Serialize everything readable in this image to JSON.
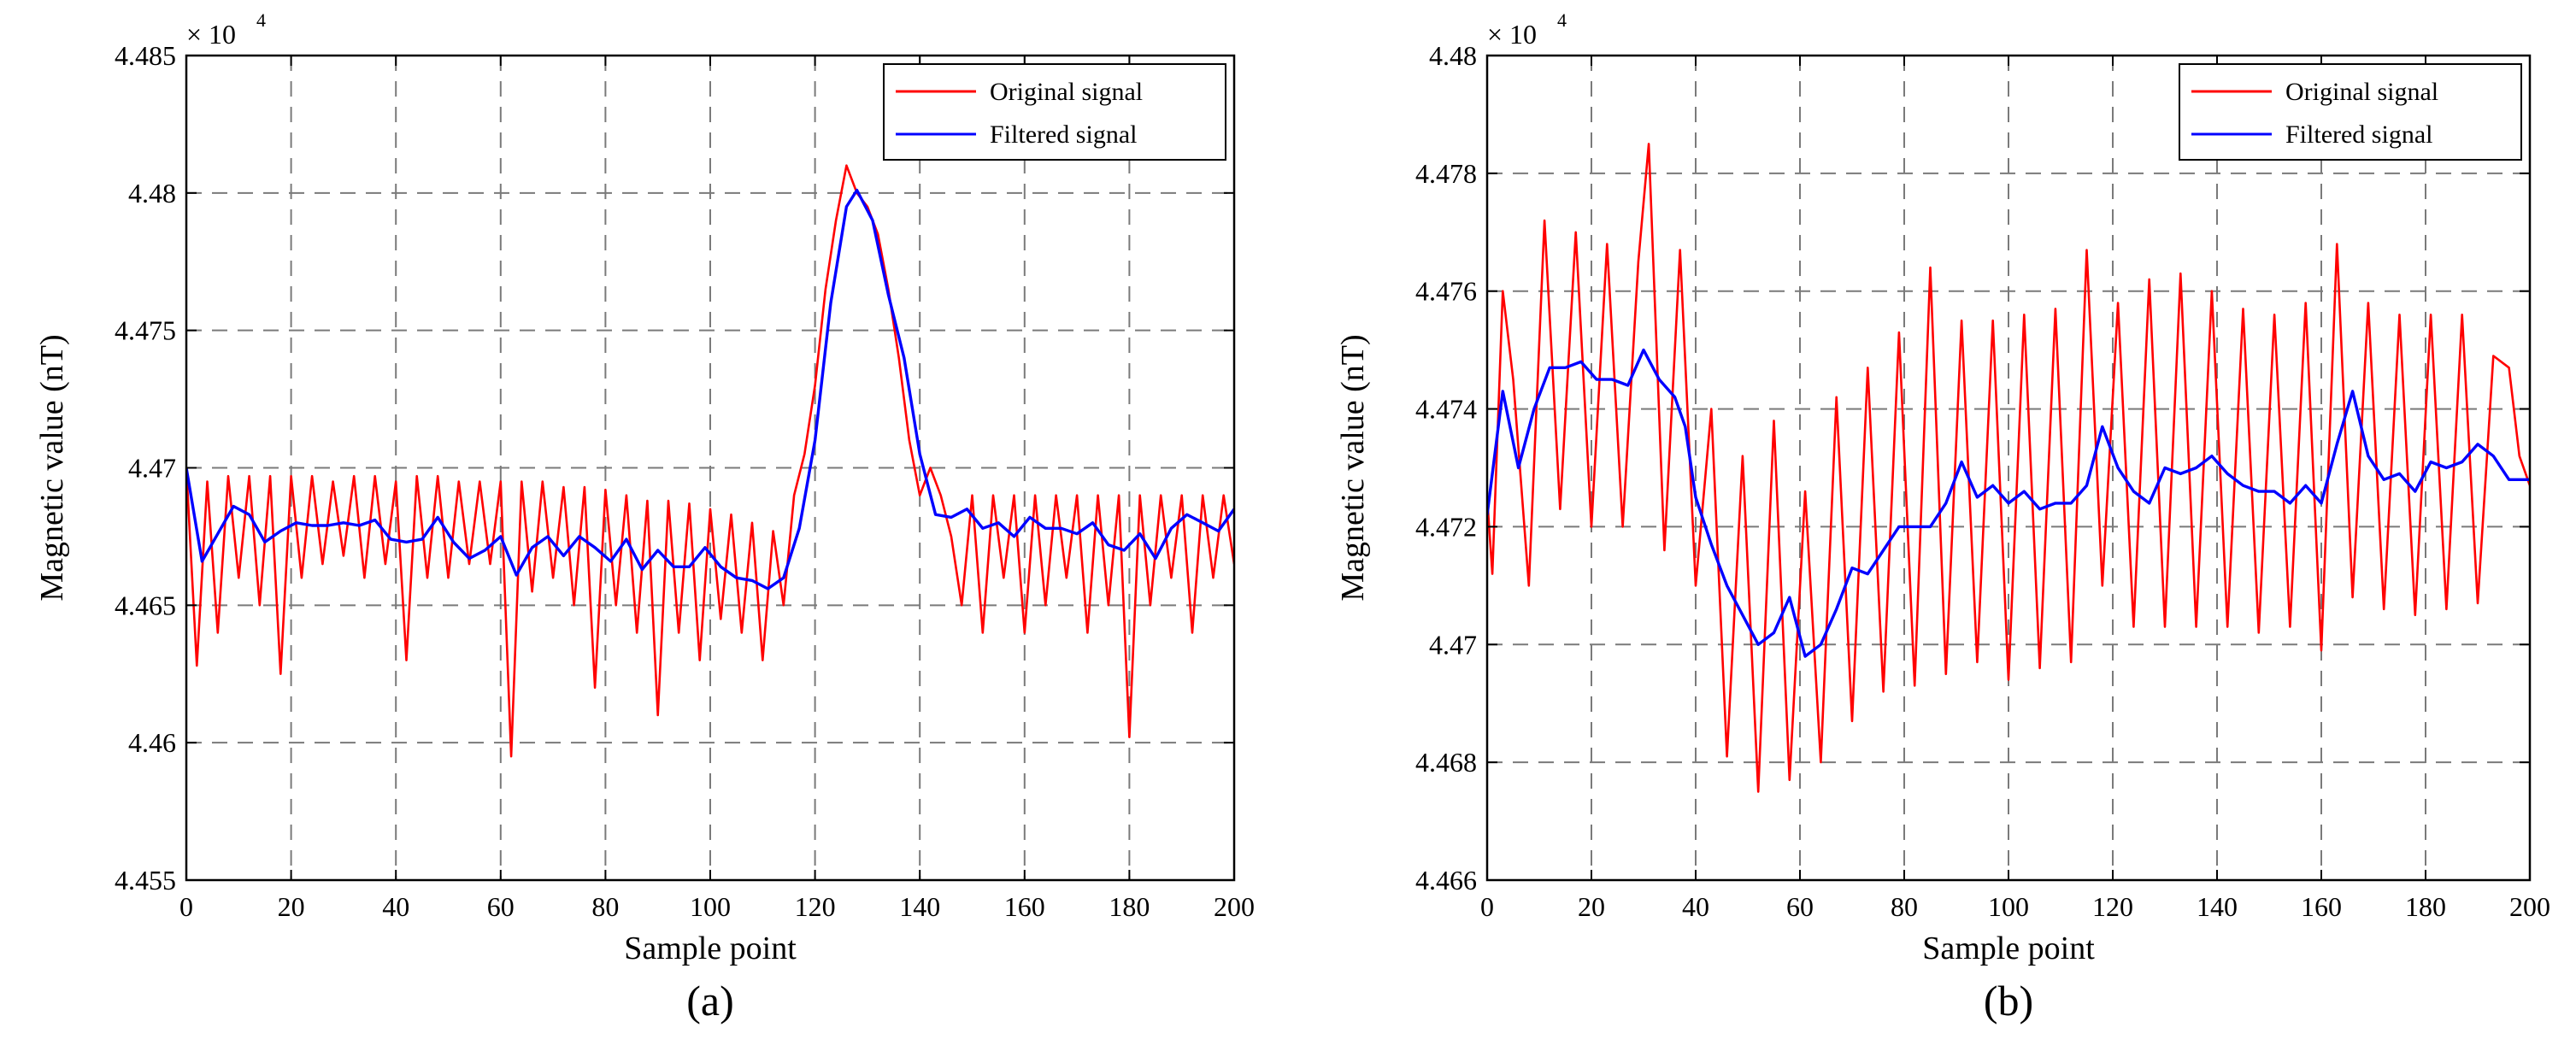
{
  "figure": {
    "panels": [
      "(a)",
      "(b)"
    ]
  },
  "colors": {
    "original": "#ff0000",
    "filtered": "#0000ff",
    "grid": "#7a7a7a",
    "axis": "#000000"
  },
  "chart_data": [
    {
      "type": "line",
      "panel_label": "(a)",
      "xlabel": "Sample point",
      "ylabel": "Magnetic value (nT)",
      "scale_factor_text": "× 10",
      "scale_factor_exp": "4",
      "xlim": [
        0,
        200
      ],
      "ylim": [
        4.455,
        4.485
      ],
      "xticks": [
        0,
        20,
        40,
        60,
        80,
        100,
        120,
        140,
        160,
        180,
        200
      ],
      "yticks": [
        4.455,
        4.46,
        4.465,
        4.47,
        4.475,
        4.48,
        4.485
      ],
      "xtick_labels": [
        "0",
        "20",
        "40",
        "60",
        "80",
        "100",
        "120",
        "140",
        "160",
        "180",
        "200"
      ],
      "ytick_labels": [
        "4.455",
        "4.46",
        "4.465",
        "4.47",
        "4.475",
        "4.48",
        "4.485"
      ],
      "grid": true,
      "legend_position": "top-right",
      "series": [
        {
          "name": "Original signal",
          "color": "#ff0000",
          "x": [
            0,
            2,
            4,
            6,
            8,
            10,
            12,
            14,
            16,
            18,
            20,
            22,
            24,
            26,
            28,
            30,
            32,
            34,
            36,
            38,
            40,
            42,
            44,
            46,
            48,
            50,
            52,
            54,
            56,
            58,
            60,
            62,
            64,
            66,
            68,
            70,
            72,
            74,
            76,
            78,
            80,
            82,
            84,
            86,
            88,
            90,
            92,
            94,
            96,
            98,
            100,
            102,
            104,
            106,
            108,
            110,
            112,
            114,
            116,
            118,
            120,
            122,
            124,
            126,
            128,
            130,
            132,
            134,
            136,
            138,
            140,
            142,
            144,
            146,
            148,
            150,
            152,
            154,
            156,
            158,
            160,
            162,
            164,
            166,
            168,
            170,
            172,
            174,
            176,
            178,
            180,
            182,
            184,
            186,
            188,
            190,
            192,
            194,
            196,
            198,
            200
          ],
          "y": [
            4.47,
            4.4628,
            4.4695,
            4.464,
            4.4697,
            4.466,
            4.4697,
            4.465,
            4.4697,
            4.4625,
            4.4697,
            4.466,
            4.4697,
            4.4665,
            4.4695,
            4.4668,
            4.4697,
            4.466,
            4.4697,
            4.4665,
            4.4695,
            4.463,
            4.4697,
            4.466,
            4.4697,
            4.466,
            4.4695,
            4.4665,
            4.4695,
            4.4665,
            4.4695,
            4.4595,
            4.4695,
            4.4655,
            4.4695,
            4.466,
            4.4693,
            4.465,
            4.4693,
            4.462,
            4.4692,
            4.465,
            4.469,
            4.464,
            4.4688,
            4.461,
            4.4688,
            4.464,
            4.4687,
            4.463,
            4.4685,
            4.4645,
            4.4683,
            4.464,
            4.468,
            4.463,
            4.4677,
            4.465,
            4.469,
            4.4705,
            4.473,
            4.4765,
            4.479,
            4.481,
            4.48,
            4.4795,
            4.4785,
            4.4765,
            4.474,
            4.471,
            4.469,
            4.47,
            4.469,
            4.4675,
            4.465,
            4.469,
            4.464,
            4.469,
            4.466,
            4.469,
            4.464,
            4.469,
            4.465,
            4.469,
            4.466,
            4.469,
            4.464,
            4.469,
            4.465,
            4.469,
            4.4602,
            4.469,
            4.465,
            4.469,
            4.466,
            4.469,
            4.464,
            4.469,
            4.466,
            4.469,
            4.4665
          ]
        },
        {
          "name": "Filtered signal",
          "color": "#0000ff",
          "x": [
            0,
            3,
            6,
            9,
            12,
            15,
            18,
            21,
            24,
            27,
            30,
            33,
            36,
            39,
            42,
            45,
            48,
            51,
            54,
            57,
            60,
            63,
            66,
            69,
            72,
            75,
            78,
            81,
            84,
            87,
            90,
            93,
            96,
            99,
            102,
            105,
            108,
            111,
            114,
            117,
            120,
            123,
            126,
            128,
            131,
            134,
            137,
            140,
            143,
            146,
            149,
            152,
            155,
            158,
            161,
            164,
            167,
            170,
            173,
            176,
            179,
            182,
            185,
            188,
            191,
            194,
            197,
            200
          ],
          "y": [
            4.47,
            4.4666,
            4.4676,
            4.4686,
            4.4683,
            4.4673,
            4.4677,
            4.468,
            4.4679,
            4.4679,
            4.468,
            4.4679,
            4.4681,
            4.4674,
            4.4673,
            4.4674,
            4.4682,
            4.4673,
            4.4667,
            4.467,
            4.4675,
            4.4661,
            4.4671,
            4.4675,
            4.4668,
            4.4675,
            4.4671,
            4.4666,
            4.4674,
            4.4663,
            4.467,
            4.4664,
            4.4664,
            4.4671,
            4.4664,
            4.466,
            4.4659,
            4.4656,
            4.466,
            4.4678,
            4.471,
            4.476,
            4.4795,
            4.4801,
            4.479,
            4.4763,
            4.474,
            4.4705,
            4.4683,
            4.4682,
            4.4685,
            4.4678,
            4.468,
            4.4675,
            4.4682,
            4.4678,
            4.4678,
            4.4676,
            4.468,
            4.4672,
            4.467,
            4.4676,
            4.4667,
            4.4678,
            4.4683,
            4.468,
            4.4677,
            4.4685
          ]
        }
      ]
    },
    {
      "type": "line",
      "panel_label": "(b)",
      "xlabel": "Sample point",
      "ylabel": "Magnetic value (nT)",
      "scale_factor_text": "× 10",
      "scale_factor_exp": "4",
      "xlim": [
        0,
        200
      ],
      "ylim": [
        4.466,
        4.48
      ],
      "xticks": [
        0,
        20,
        40,
        60,
        80,
        100,
        120,
        140,
        160,
        180,
        200
      ],
      "yticks": [
        4.466,
        4.468,
        4.47,
        4.472,
        4.474,
        4.476,
        4.478,
        4.48
      ],
      "xtick_labels": [
        "0",
        "20",
        "40",
        "60",
        "80",
        "100",
        "120",
        "140",
        "160",
        "180",
        "200"
      ],
      "ytick_labels": [
        "4.466",
        "4.468",
        "4.47",
        "4.472",
        "4.474",
        "4.476",
        "4.478",
        "4.48"
      ],
      "grid": true,
      "legend_position": "top-right",
      "series": [
        {
          "name": "Original signal",
          "color": "#ff0000",
          "x": [
            0,
            1,
            3,
            5,
            8,
            11,
            14,
            17,
            20,
            23,
            26,
            29,
            31,
            34,
            37,
            40,
            43,
            46,
            49,
            52,
            55,
            58,
            61,
            64,
            67,
            70,
            73,
            76,
            79,
            82,
            85,
            88,
            91,
            94,
            97,
            100,
            103,
            106,
            109,
            112,
            115,
            118,
            121,
            124,
            127,
            130,
            133,
            136,
            139,
            142,
            145,
            148,
            151,
            154,
            157,
            160,
            163,
            166,
            169,
            172,
            175,
            178,
            181,
            184,
            187,
            190,
            193,
            196,
            198,
            200
          ],
          "y": [
            4.4725,
            4.4712,
            4.476,
            4.4745,
            4.471,
            4.4772,
            4.4723,
            4.477,
            4.472,
            4.4768,
            4.472,
            4.4765,
            4.4785,
            4.4716,
            4.4767,
            4.471,
            4.474,
            4.4681,
            4.4732,
            4.4675,
            4.4738,
            4.4677,
            4.4726,
            4.468,
            4.4742,
            4.4687,
            4.4747,
            4.4692,
            4.4753,
            4.4693,
            4.4764,
            4.4695,
            4.4755,
            4.4697,
            4.4755,
            4.4694,
            4.4756,
            4.4696,
            4.4757,
            4.4697,
            4.4767,
            4.471,
            4.4758,
            4.4703,
            4.4762,
            4.4703,
            4.4763,
            4.4703,
            4.476,
            4.4703,
            4.4757,
            4.4702,
            4.4756,
            4.4703,
            4.4758,
            4.4699,
            4.4768,
            4.4708,
            4.4758,
            4.4706,
            4.4756,
            4.4705,
            4.4756,
            4.4706,
            4.4756,
            4.4707,
            4.4749,
            4.4747,
            4.4732,
            4.4727
          ]
        },
        {
          "name": "Filtered signal",
          "color": "#0000ff",
          "x": [
            0,
            3,
            6,
            9,
            12,
            15,
            18,
            21,
            24,
            27,
            30,
            33,
            36,
            38,
            40,
            43,
            46,
            49,
            52,
            55,
            58,
            61,
            64,
            67,
            70,
            73,
            76,
            79,
            82,
            85,
            88,
            91,
            94,
            97,
            100,
            103,
            106,
            109,
            112,
            115,
            118,
            121,
            124,
            127,
            130,
            133,
            136,
            139,
            142,
            145,
            148,
            151,
            154,
            157,
            160,
            163,
            166,
            169,
            172,
            175,
            178,
            181,
            184,
            187,
            190,
            193,
            196,
            200
          ],
          "y": [
            4.4722,
            4.4743,
            4.473,
            4.474,
            4.4747,
            4.4747,
            4.4748,
            4.4745,
            4.4745,
            4.4744,
            4.475,
            4.4745,
            4.4742,
            4.4737,
            4.4725,
            4.4717,
            4.471,
            4.4705,
            4.47,
            4.4702,
            4.4708,
            4.4698,
            4.47,
            4.4706,
            4.4713,
            4.4712,
            4.4716,
            4.472,
            4.472,
            4.472,
            4.4724,
            4.4731,
            4.4725,
            4.4727,
            4.4724,
            4.4726,
            4.4723,
            4.4724,
            4.4724,
            4.4727,
            4.4737,
            4.473,
            4.4726,
            4.4724,
            4.473,
            4.4729,
            4.473,
            4.4732,
            4.4729,
            4.4727,
            4.4726,
            4.4726,
            4.4724,
            4.4727,
            4.4724,
            4.4734,
            4.4743,
            4.4732,
            4.4728,
            4.4729,
            4.4726,
            4.4731,
            4.473,
            4.4731,
            4.4734,
            4.4732,
            4.4728,
            4.4728
          ]
        }
      ]
    }
  ]
}
